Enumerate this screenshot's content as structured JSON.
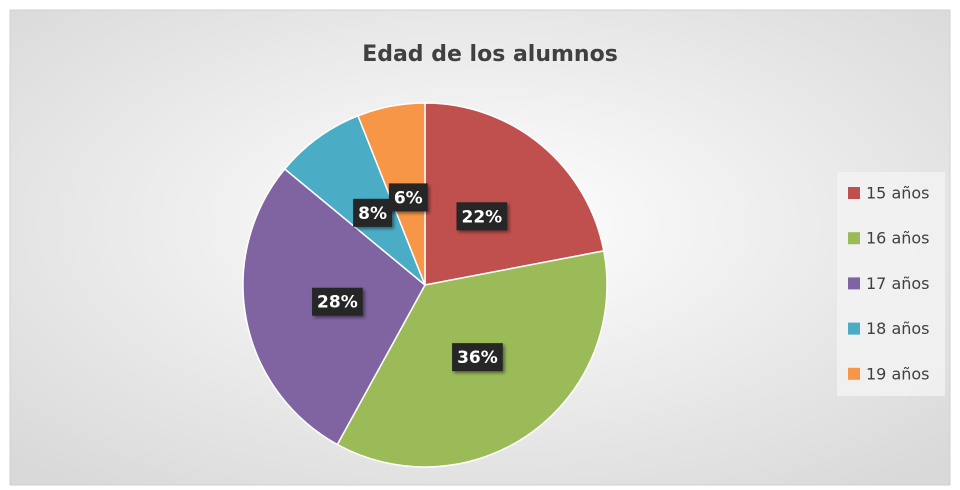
{
  "chart_data": {
    "type": "pie",
    "title": "Edad de los alumnos",
    "categories": [
      "15 años",
      "16 años",
      "17 años",
      "18 años",
      "19 años"
    ],
    "values": [
      22,
      36,
      28,
      8,
      6
    ],
    "value_labels": [
      "22%",
      "36%",
      "28%",
      "8%",
      "6%"
    ],
    "colors": [
      "#c0504d",
      "#9bbb59",
      "#8064a2",
      "#4bacc6",
      "#f79646"
    ],
    "legend": "right"
  }
}
